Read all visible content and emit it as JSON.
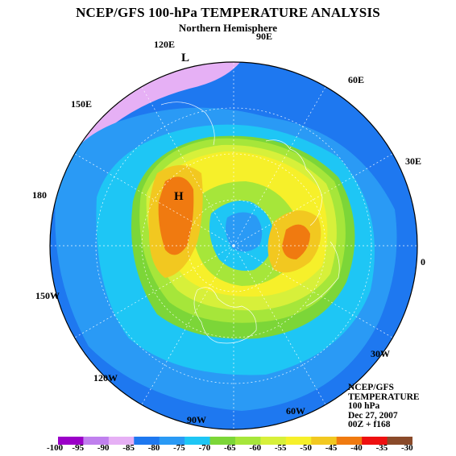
{
  "title": "NCEP/GFS 100-hPa TEMPERATURE ANALYSIS",
  "subtitle": "Northern Hemisphere",
  "longitude_labels": {
    "lon_120e": "120E",
    "lon_90e": "90E",
    "lon_60e": "60E",
    "lon_150e": "150E",
    "lon_30e": "30E",
    "lon_180": "180",
    "lon_0": "0",
    "lon_150w": "150W",
    "lon_30w": "30W",
    "lon_120w": "120W",
    "lon_90w": "90W",
    "lon_60w": "60W"
  },
  "pressure_centers": {
    "low": "L",
    "high": "H"
  },
  "info_block": {
    "line1": "NCEP/GFS",
    "line2": "TEMPERATURE",
    "line3": "100 hPa",
    "line4": "Dec 27, 2007",
    "line5": "00Z + f168"
  },
  "colorbar": {
    "ticks": [
      "-100",
      "-95",
      "-90",
      "-85",
      "-80",
      "-75",
      "-70",
      "-65",
      "-60",
      "-55",
      "-50",
      "-45",
      "-40",
      "-35",
      "-30"
    ],
    "colors": [
      "#9b00c8",
      "#c080ee",
      "#e6b0f5",
      "#1e78f0",
      "#2a9af5",
      "#1ec6f5",
      "#7cd638",
      "#a6e63a",
      "#d7f03a",
      "#f6f02a",
      "#f2c820",
      "#f07a10",
      "#ee1010",
      "#8a4a2a",
      "#808080"
    ]
  }
}
